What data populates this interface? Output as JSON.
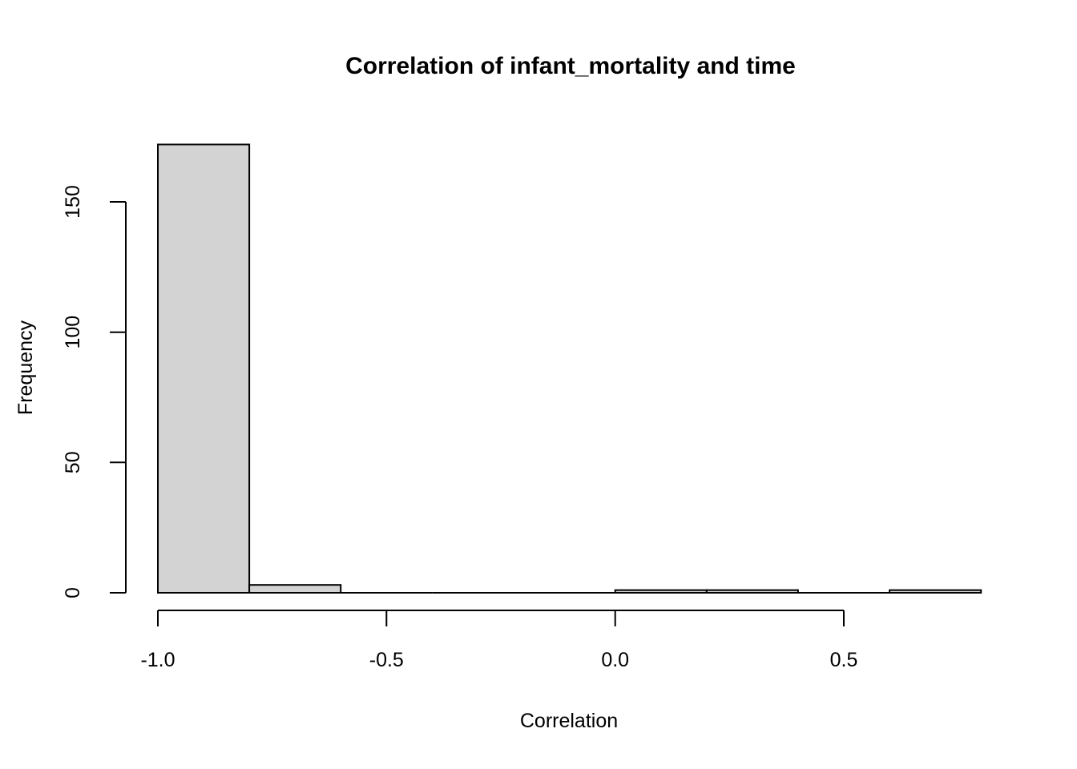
{
  "chart_data": {
    "type": "bar",
    "subtype": "histogram",
    "title": "Correlation of infant_mortality and time",
    "xlabel": "Correlation",
    "ylabel": "Frequency",
    "bins": [
      {
        "from": -1.0,
        "to": -0.8,
        "count": 172
      },
      {
        "from": -0.8,
        "to": -0.6,
        "count": 3
      },
      {
        "from": -0.6,
        "to": -0.4,
        "count": 0
      },
      {
        "from": -0.4,
        "to": -0.2,
        "count": 0
      },
      {
        "from": -0.2,
        "to": 0.0,
        "count": 0
      },
      {
        "from": 0.0,
        "to": 0.2,
        "count": 1
      },
      {
        "from": 0.2,
        "to": 0.4,
        "count": 1
      },
      {
        "from": 0.4,
        "to": 0.6,
        "count": 0
      },
      {
        "from": 0.6,
        "to": 0.8,
        "count": 1
      }
    ],
    "x_ticks": [
      -1.0,
      -0.5,
      0.0,
      0.5
    ],
    "x_tick_labels": [
      "-1.0",
      "-0.5",
      "0.0",
      "0.5"
    ],
    "y_ticks": [
      0,
      50,
      100,
      150
    ],
    "y_tick_labels": [
      "0",
      "50",
      "100",
      "150"
    ],
    "xlim": [
      -1.0,
      0.8
    ],
    "ylim": [
      0,
      172
    ],
    "grid": "off",
    "legend": "none",
    "colors": {
      "bar_fill": "#D3D3D3",
      "bar_stroke": "#000000",
      "axis": "#000000",
      "background": "#FFFFFF"
    }
  }
}
